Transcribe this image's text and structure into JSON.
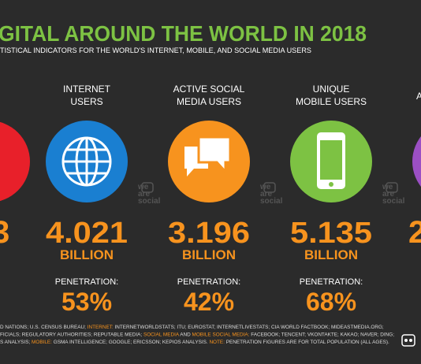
{
  "header": {
    "title": "GITAL AROUND THE WORLD IN 2018",
    "subtitle": "TISTICAL INDICATORS FOR THE WORLD'S INTERNET, MOBILE, AND SOCIAL MEDIA USERS"
  },
  "partial_left": {
    "value": "3"
  },
  "partial_right": {
    "label": "A",
    "value": "2"
  },
  "columns": [
    {
      "label": [
        "INTERNET",
        "USERS"
      ],
      "value": "4.021",
      "unit": "BILLION",
      "penetration_label": "PENETRATION:",
      "penetration": "53%"
    },
    {
      "label": [
        "ACTIVE SOCIAL",
        "MEDIA USERS"
      ],
      "value": "3.196",
      "unit": "BILLION",
      "penetration_label": "PENETRATION:",
      "penetration": "42%"
    },
    {
      "label": [
        "UNIQUE",
        "MOBILE USERS"
      ],
      "value": "5.135",
      "unit": "BILLION",
      "penetration_label": "PENETRATION:",
      "penetration": "68%"
    }
  ],
  "watermark": [
    "we",
    "are",
    "social"
  ],
  "footer": [
    [
      {
        "text": "D NATIONS; U.S. CENSUS BUREAU; ",
        "highlight": false
      },
      {
        "text": "INTERNET:",
        "highlight": true
      },
      {
        "text": " INTERNETWORLDSTATS; ITU; EUROSTAT; INTERNETLIVESTATS; CIA WORLD FACTBOOK; MIDEASTMEDIA.ORG;",
        "highlight": false
      }
    ],
    [
      {
        "text": "FICIALS; REGULATORY AUTHORITIES; REPUTABLE MEDIA; ",
        "highlight": false
      },
      {
        "text": "SOCIAL MEDIA",
        "highlight": true
      },
      {
        "text": " AND ",
        "highlight": false
      },
      {
        "text": "MOBILE SOCIAL MEDIA:",
        "highlight": true
      },
      {
        "text": " FACEBOOK; TENCENT; VKONTAKTE; KAKAO; NAVER; DING;",
        "highlight": false
      }
    ],
    [
      {
        "text": "S ANALYSIS; ",
        "highlight": false
      },
      {
        "text": "MOBILE:",
        "highlight": true
      },
      {
        "text": " GSMA INTELLIGENCE; GOOGLE; ERICSSON; KEPIOS ANALYSIS. ",
        "highlight": false
      },
      {
        "text": "NOTE:",
        "highlight": true
      },
      {
        "text": " PENETRATION FIGURES ARE FOR TOTAL POPULATION (ALL AGES).",
        "highlight": false
      }
    ]
  ]
}
